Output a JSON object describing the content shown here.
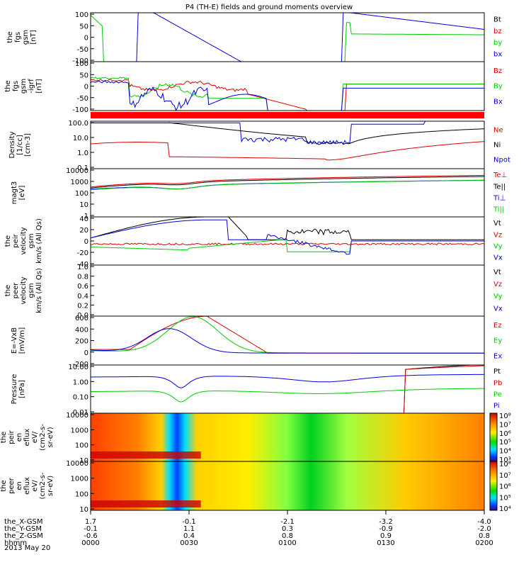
{
  "title": "P4 (TH-E) fields and ground moments overview",
  "date": "2013 May 20",
  "colors": {
    "black": "#000000",
    "red": "#dd0000",
    "green": "#00cc00",
    "blue": "#0000dd"
  },
  "chart_data": [
    {
      "type": "line",
      "id": "fgs",
      "ylabel": [
        "the",
        "fgs",
        "gsm",
        "[nT]"
      ],
      "yticks": [
        "100",
        "50",
        "0",
        "-50",
        "-100"
      ],
      "ylim": [
        -100,
        100
      ],
      "legend": [
        {
          "name": "Bt",
          "color": "black"
        },
        {
          "name": "bz",
          "color": "red"
        },
        {
          "name": "by",
          "color": "green"
        },
        {
          "name": "bx",
          "color": "blue"
        }
      ]
    },
    {
      "type": "line",
      "id": "fgs_hp",
      "ylabel": [
        "the",
        "fgs",
        "gsm",
        "-igrf",
        "[nT]"
      ],
      "yticks": [
        "100",
        "50",
        "0",
        "-50",
        "-100"
      ],
      "ylim": [
        -120,
        120
      ],
      "legend": [
        {
          "name": "Bz",
          "color": "red"
        },
        {
          "name": "By",
          "color": "green"
        },
        {
          "name": "Bx",
          "color": "blue"
        }
      ]
    },
    {
      "type": "line",
      "id": "density",
      "ylabel": [
        "Density",
        "[1/cc]",
        "[cm-3]"
      ],
      "yticks": [
        "100.0",
        "10.0",
        "1.0",
        "0.1"
      ],
      "ylim": [
        0.07,
        200
      ],
      "ylog": true,
      "legend": [
        {
          "name": "Ne",
          "color": "red"
        },
        {
          "name": "Ni",
          "color": "black"
        },
        {
          "name": "Npot",
          "color": "blue"
        }
      ]
    },
    {
      "type": "line",
      "id": "temp",
      "ylabel": [
        "magt3",
        "[eV]"
      ],
      "yticks": [
        "10000",
        "1000",
        "100",
        "10",
        "1"
      ],
      "ylim": [
        1,
        10000
      ],
      "ylog": true,
      "legend": [
        {
          "name": "Te⊥",
          "color": "red"
        },
        {
          "name": "Te||",
          "color": "black"
        },
        {
          "name": "Ti⊥",
          "color": "blue"
        },
        {
          "name": "Ti||",
          "color": "green"
        }
      ]
    },
    {
      "type": "line",
      "id": "peir_vel",
      "ylabel": [
        "the",
        "peir",
        "velocity",
        "gsm",
        "km/s (All Qs)"
      ],
      "yticks": [
        "40",
        "20",
        "0",
        "-20",
        "-40"
      ],
      "ylim": [
        -40,
        40
      ],
      "legend": [
        {
          "name": "Vt",
          "color": "black"
        },
        {
          "name": "Vz",
          "color": "red"
        },
        {
          "name": "Vy",
          "color": "green"
        },
        {
          "name": "Vx",
          "color": "blue"
        }
      ]
    },
    {
      "type": "line",
      "id": "peer_vel",
      "ylabel": [
        "the",
        "peer",
        "velocity",
        "gsm",
        "km/s (All Qs)"
      ],
      "yticks": [
        "1.0",
        "0.8",
        "0.6",
        "0.4",
        "0.2",
        "0.0"
      ],
      "ylim": [
        0,
        1
      ],
      "legend": [
        {
          "name": "Vt",
          "color": "black"
        },
        {
          "name": "Vz",
          "color": "red"
        },
        {
          "name": "Vy",
          "color": "green"
        },
        {
          "name": "Vx",
          "color": "blue"
        }
      ]
    },
    {
      "type": "line",
      "id": "efield",
      "ylabel": [
        "E=-VxB",
        "[mV/m]"
      ],
      "yticks": [
        "600",
        "400",
        "200",
        "0",
        "-200"
      ],
      "ylim": [
        -200,
        620
      ],
      "legend": [
        {
          "name": "Ez",
          "color": "red"
        },
        {
          "name": "Ey",
          "color": "green"
        },
        {
          "name": "Ex",
          "color": "blue"
        }
      ]
    },
    {
      "type": "line",
      "id": "pressure",
      "ylabel": [
        "Pressure",
        "[nPa]"
      ],
      "yticks": [
        "10.00",
        "1.00",
        "0.10",
        "0.01"
      ],
      "ylim": [
        0.01,
        20
      ],
      "ylog": true,
      "legend": [
        {
          "name": "Pt",
          "color": "black"
        },
        {
          "name": "Pb",
          "color": "red"
        },
        {
          "name": "Pe",
          "color": "green"
        },
        {
          "name": "Pi",
          "color": "blue"
        }
      ]
    },
    {
      "type": "heatmap",
      "id": "peir_en",
      "ylabel": [
        "the",
        "peir",
        "en",
        "eflux",
        "eV/",
        "(cm2-s-",
        "sr-eV)"
      ],
      "yticks": [
        "10000",
        "1000",
        "100",
        "10"
      ],
      "colorbar": [
        "10⁸",
        "10⁷",
        "10⁶",
        "10⁵",
        "10⁴",
        "10³"
      ]
    },
    {
      "type": "heatmap",
      "id": "peer_en",
      "ylabel": [
        "the",
        "peer",
        "en",
        "eflux",
        "eV/",
        "(cm2-s-",
        "sr-eV)"
      ],
      "yticks": [
        "10000",
        "1000",
        "100",
        "10"
      ],
      "colorbar": [
        "10⁸",
        "10⁷",
        "10⁶",
        "10⁵",
        "10⁴"
      ]
    }
  ],
  "xaxis": {
    "labels": [
      "the_X-GSM",
      "the_Y-GSM",
      "the_Z-GSM",
      "hhmm"
    ],
    "columns": [
      [
        "1.7",
        "-0.1",
        "-0.6",
        "0000"
      ],
      [
        "-0.1",
        "1.1",
        "0.4",
        "0030"
      ],
      [
        "-2.1",
        "0.3",
        "0.8",
        "0100"
      ],
      [
        "-3.2",
        "-0.9",
        "0.9",
        "0130"
      ],
      [
        "-4.0",
        "-2.0",
        "0.8",
        "0200"
      ]
    ]
  }
}
